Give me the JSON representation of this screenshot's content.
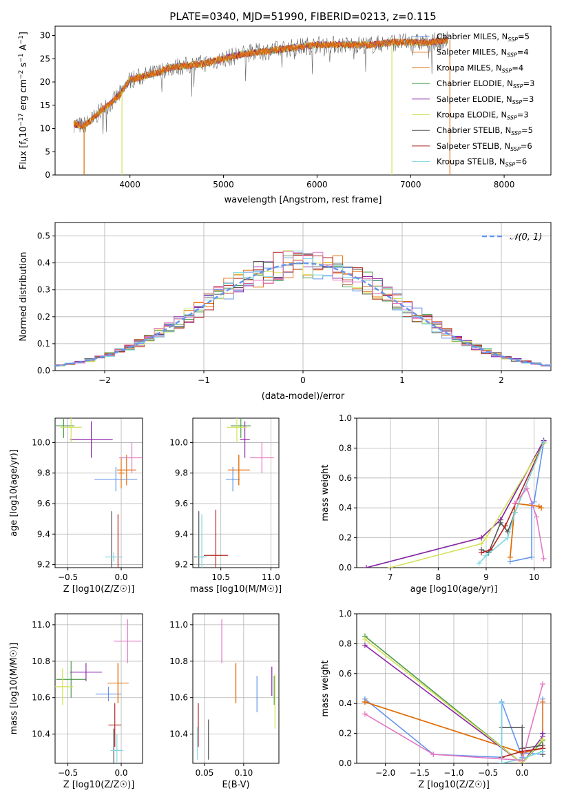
{
  "figure_title": "PLATE=0340, MJD=51990, FIBERID=0213, z=0.115",
  "model_colors": [
    "#6495ED",
    "#E8751A",
    "#E06C00",
    "#4C9A4C",
    "#8E24AA",
    "#D4E157",
    "#555555",
    "#B22222",
    "#7FD6E0"
  ],
  "chart_data": [
    {
      "id": "spectrum",
      "type": "line",
      "title": "PLATE=0340, MJD=51990, FIBERID=0213, z=0.115",
      "xlabel": "wavelength [Angstrom, rest frame]",
      "ylabel": "Flux [f_λ 10^-17 erg cm^-2 s^-1 A^-1]",
      "xlim": [
        3200,
        8500
      ],
      "ylim": [
        0,
        32
      ],
      "xticks": [
        4000,
        5000,
        6000,
        7000,
        8000
      ],
      "yticks": [
        0,
        5,
        10,
        15,
        20,
        25,
        30
      ],
      "grid": false,
      "legend_position": "right",
      "spectrum_x": [
        3400,
        3500,
        3600,
        3700,
        3800,
        3900,
        4000,
        4100,
        4200,
        4300,
        4400,
        4600,
        4800,
        5000,
        5200,
        5400,
        5600,
        5800,
        6000,
        6200,
        6400,
        6600,
        6800,
        7000,
        7200,
        7400
      ],
      "spectrum_y": [
        11,
        10.5,
        12,
        14,
        15.5,
        17.5,
        20.5,
        21,
        21.5,
        22,
        23,
        23.5,
        24,
        25,
        26,
        26.5,
        27,
        27.5,
        28,
        28,
        28,
        28,
        28.5,
        28.5,
        28.5,
        29
      ],
      "series": [
        {
          "name": "Chabrier MILES, N_SSP=5",
          "label_main": "Chabrier MILES, N",
          "label_sub": "SSP",
          "label_tail": "=5"
        },
        {
          "name": "Salpeter MILES, N_SSP=4",
          "label_main": "Salpeter MILES, N",
          "label_sub": "SSP",
          "label_tail": "=4"
        },
        {
          "name": "Kroupa MILES, N_SSP=4",
          "label_main": "Kroupa MILES, N",
          "label_sub": "SSP",
          "label_tail": "=4"
        },
        {
          "name": "Chabrier ELODIE, N_SSP=3",
          "label_main": "Chabrier ELODIE, N",
          "label_sub": "SSP",
          "label_tail": "=3"
        },
        {
          "name": "Salpeter ELODIE, N_SSP=3",
          "label_main": "Salpeter ELODIE, N",
          "label_sub": "SSP",
          "label_tail": "=3"
        },
        {
          "name": "Kroupa ELODIE, N_SSP=3",
          "label_main": "Kroupa ELODIE, N",
          "label_sub": "SSP",
          "label_tail": "=3"
        },
        {
          "name": "Chabrier STELIB, N_SSP=5",
          "label_main": "Chabrier STELIB, N",
          "label_sub": "SSP",
          "label_tail": "=5"
        },
        {
          "name": "Salpeter STELIB, N_SSP=6",
          "label_main": "Salpeter STELIB, N",
          "label_sub": "SSP",
          "label_tail": "=6"
        },
        {
          "name": "Kroupa STELIB, N_SSP=6",
          "label_main": "Kroupa STELIB, N",
          "label_sub": "SSP",
          "label_tail": "=6"
        }
      ]
    },
    {
      "id": "residuals",
      "type": "line",
      "xlabel": "(data-model)/error",
      "ylabel": "Normed distribution",
      "xlim": [
        -2.5,
        2.5
      ],
      "ylim": [
        0,
        0.55
      ],
      "xticks": [
        -2,
        -1,
        0,
        1,
        2
      ],
      "yticks": [
        0.0,
        0.1,
        0.2,
        0.3,
        0.4,
        0.5
      ],
      "grid": true,
      "legend_position": "top-right",
      "legend_label": "𝒩(0, 1)",
      "bin_centers": [
        -2.45,
        -2.35,
        -2.25,
        -2.15,
        -2.05,
        -1.95,
        -1.85,
        -1.75,
        -1.65,
        -1.55,
        -1.45,
        -1.35,
        -1.25,
        -1.15,
        -1.05,
        -0.95,
        -0.85,
        -0.75,
        -0.65,
        -0.55,
        -0.45,
        -0.35,
        -0.25,
        -0.15,
        -0.05,
        0.05,
        0.15,
        0.25,
        0.35,
        0.45,
        0.55,
        0.65,
        0.75,
        0.85,
        0.95,
        1.05,
        1.15,
        1.25,
        1.35,
        1.45,
        1.55,
        1.65,
        1.75,
        1.85,
        1.95,
        2.05,
        2.15,
        2.25,
        2.35,
        2.45
      ]
    },
    {
      "id": "age-vs-Z",
      "type": "scatter",
      "xlabel": "Z [log10(Z/Z☉)]",
      "ylabel": "age [log10(age/yr)]",
      "xlim": [
        -0.62,
        0.2
      ],
      "ylim": [
        9.18,
        10.16
      ],
      "xticks": [
        -0.5,
        0.0
      ],
      "xtick_labels": [
        "−0.5",
        "0.0"
      ],
      "yticks": [
        9.2,
        9.4,
        9.6,
        9.8,
        10.0
      ],
      "yticklabels": [
        "9.2",
        "9.4",
        "9.6",
        "9.8",
        "10.0"
      ],
      "grid": true,
      "points": [
        {
          "x": -0.05,
          "y": 9.76,
          "xerr": 0.2,
          "yerr": 0.08
        },
        {
          "x": 0.05,
          "y": 9.82,
          "xerr": 0.09,
          "yerr": 0.1
        },
        {
          "x": 0.0,
          "y": 9.8,
          "xerr": 0.03,
          "yerr": 0.1
        },
        {
          "x": -0.54,
          "y": 10.11,
          "xerr": 0.1,
          "yerr": 0.08
        },
        {
          "x": -0.28,
          "y": 10.02,
          "xerr": 0.2,
          "yerr": 0.12
        },
        {
          "x": -0.47,
          "y": 10.1,
          "xerr": 0.1,
          "yerr": 0.1
        },
        {
          "x": -0.09,
          "y": 9.25,
          "xerr": 0.0,
          "yerr": 0.3
        },
        {
          "x": -0.03,
          "y": 9.25,
          "xerr": 0.0,
          "yerr": 0.28
        },
        {
          "x": -0.07,
          "y": 9.25,
          "xerr": 0.08,
          "yerr": 0.03
        }
      ],
      "extra_pink": {
        "x": 0.1,
        "y": 9.9,
        "xerr": 0.12,
        "yerr": 0.1
      }
    },
    {
      "id": "age-vs-mass",
      "type": "scatter",
      "xlabel": "mass [log10(M/M☉)]",
      "ylabel": "",
      "xlim": [
        10.22,
        11.08
      ],
      "ylim": [
        9.18,
        10.16
      ],
      "xticks": [
        10.5,
        11.0
      ],
      "xtick_labels": [
        "10.5",
        "11.0"
      ],
      "yticks": [
        9.2,
        9.4,
        9.6,
        9.8,
        10.0
      ],
      "yticklabels": [
        "9.2",
        "9.4",
        "9.6",
        "9.8",
        "10.0"
      ],
      "grid": true,
      "points": [
        {
          "x": 10.62,
          "y": 9.76,
          "xerr": 0.07,
          "yerr": 0.08
        },
        {
          "x": 10.68,
          "y": 9.82,
          "xerr": 0.11,
          "yerr": 0.1
        },
        {
          "x": 10.68,
          "y": 9.82,
          "xerr": 0.0,
          "yerr": 0.1
        },
        {
          "x": 10.7,
          "y": 10.11,
          "xerr": 0.1,
          "yerr": 0.08
        },
        {
          "x": 10.74,
          "y": 10.02,
          "xerr": 0.05,
          "yerr": 0.12
        },
        {
          "x": 10.66,
          "y": 10.1,
          "xerr": 0.1,
          "yerr": 0.1
        },
        {
          "x": 10.28,
          "y": 9.25,
          "xerr": 0.05,
          "yerr": 0.3
        },
        {
          "x": 10.45,
          "y": 9.26,
          "xerr": 0.12,
          "yerr": 0.3
        },
        {
          "x": 10.31,
          "y": 9.25,
          "xerr": 0.05,
          "yerr": 0.28
        }
      ],
      "extra_pink": {
        "x": 10.91,
        "y": 9.9,
        "xerr": 0.12,
        "yerr": 0.1
      }
    },
    {
      "id": "mass-weight-vs-age",
      "type": "line",
      "xlabel": "age [log10(age/yr)]",
      "ylabel": "mass weight",
      "xlim": [
        6.3,
        10.35
      ],
      "ylim": [
        0,
        1
      ],
      "xticks": [
        7,
        8,
        9,
        10
      ],
      "xtick_labels": [
        "7",
        "8",
        "9",
        "10"
      ],
      "yticks": [
        0.0,
        0.2,
        0.4,
        0.6,
        0.8,
        1.0
      ],
      "yticklabels": [
        "0.0",
        "0.2",
        "0.4",
        "0.6",
        "0.8",
        "1.0"
      ],
      "grid": true,
      "series": [
        {
          "x": [
            9.5,
            9.95,
            9.95,
            10.0,
            10.2
          ],
          "y": [
            0.04,
            0.07,
            0.43,
            0.44,
            0.84
          ]
        },
        {
          "x": [
            9.5,
            9.6,
            10.1,
            10.15
          ],
          "y": [
            0.07,
            0.43,
            0.41,
            0.4
          ]
        },
        {
          "x": [
            9.5,
            9.6,
            10.1,
            10.15
          ],
          "y": [
            0.07,
            0.43,
            0.41,
            0.4
          ]
        },
        {
          "x": [
            6.5,
            8.9,
            9.3,
            10.2
          ],
          "y": [
            0.0,
            0.2,
            0.32,
            0.85
          ]
        },
        {
          "x": [
            6.5,
            8.9,
            9.3,
            10.2
          ],
          "y": [
            0.0,
            0.2,
            0.32,
            0.85
          ]
        },
        {
          "x": [
            7.0,
            8.9,
            9.0,
            10.2
          ],
          "y": [
            0.0,
            0.16,
            0.2,
            0.83
          ]
        },
        {
          "x": [
            8.9,
            9.05,
            9.3,
            9.45,
            9.6,
            10.2
          ],
          "y": [
            0.12,
            0.1,
            0.3,
            0.24,
            0.37,
            0.84
          ]
        },
        {
          "x": [
            8.9,
            9.1,
            9.4,
            10.2
          ],
          "y": [
            0.1,
            0.12,
            0.28,
            0.84
          ]
        },
        {
          "x": [
            8.85,
            9.0,
            9.45,
            9.6,
            10.2
          ],
          "y": [
            0.03,
            0.08,
            0.2,
            0.37,
            0.84
          ]
        }
      ],
      "pink": {
        "x": [
          9.6,
          9.85,
          10.05,
          10.2
        ],
        "y": [
          0.43,
          0.53,
          0.34,
          0.06
        ]
      }
    },
    {
      "id": "mass-vs-Z",
      "type": "scatter",
      "xlabel": "Z [log10(Z/Z☉)]",
      "ylabel": "mass [log10(M/M☉)]",
      "xlim": [
        -0.62,
        0.2
      ],
      "ylim": [
        10.24,
        11.06
      ],
      "xticks": [
        -0.5,
        0.0
      ],
      "xtick_labels": [
        "−0.5",
        "0.0"
      ],
      "yticks": [
        10.4,
        10.6,
        10.8,
        11.0
      ],
      "yticklabels": [
        "10.4",
        "10.6",
        "10.8",
        "11.0"
      ],
      "grid": true,
      "points": [
        {
          "x": -0.12,
          "y": 10.62,
          "xerr": 0.12,
          "yerr": 0.04
        },
        {
          "x": -0.03,
          "y": 10.68,
          "xerr": 0.1,
          "yerr": 0.11
        },
        {
          "x": -0.03,
          "y": 10.68,
          "xerr": 0.0,
          "yerr": 0.11
        },
        {
          "x": -0.47,
          "y": 10.7,
          "xerr": 0.14,
          "yerr": 0.1
        },
        {
          "x": -0.33,
          "y": 10.74,
          "xerr": 0.15,
          "yerr": 0.05
        },
        {
          "x": -0.55,
          "y": 10.66,
          "xerr": 0.1,
          "yerr": 0.1
        },
        {
          "x": -0.07,
          "y": 10.33,
          "xerr": 0.0,
          "yerr": 0.1
        },
        {
          "x": -0.06,
          "y": 10.45,
          "xerr": 0.06,
          "yerr": 0.12
        },
        {
          "x": -0.04,
          "y": 10.31,
          "xerr": 0.06,
          "yerr": 0.09
        }
      ],
      "extra_pink": {
        "x": 0.06,
        "y": 10.91,
        "xerr": 0.13,
        "yerr": 0.12
      }
    },
    {
      "id": "mass-vs-ebv",
      "type": "scatter",
      "xlabel": "E(B-V)",
      "ylabel": "",
      "xlim": [
        0.035,
        0.145
      ],
      "ylim": [
        10.24,
        11.06
      ],
      "xticks": [
        0.05,
        0.1
      ],
      "xtick_labels": [
        "0.05",
        "0.10"
      ],
      "yticks": [
        10.4,
        10.6,
        10.8,
        11.0
      ],
      "yticklabels": [
        "10.4",
        "10.6",
        "10.8",
        "11.0"
      ],
      "grid": true,
      "points": [
        {
          "x": 0.117,
          "y": 10.62,
          "xerr": 0.0,
          "yerr": 0.1
        },
        {
          "x": 0.09,
          "y": 10.68,
          "xerr": 0.0,
          "yerr": 0.11
        },
        {
          "x": 0.09,
          "y": 10.68,
          "xerr": 0.0,
          "yerr": 0.11
        },
        {
          "x": 0.139,
          "y": 10.64,
          "xerr": 0.0,
          "yerr": 0.08
        },
        {
          "x": 0.136,
          "y": 10.69,
          "xerr": 0.0,
          "yerr": 0.08
        },
        {
          "x": 0.14,
          "y": 10.58,
          "xerr": 0.0,
          "yerr": 0.15
        },
        {
          "x": 0.055,
          "y": 10.37,
          "xerr": 0.0,
          "yerr": 0.11
        },
        {
          "x": 0.042,
          "y": 10.45,
          "xerr": 0.0,
          "yerr": 0.12
        },
        {
          "x": 0.041,
          "y": 10.35,
          "xerr": 0.0,
          "yerr": 0.09
        }
      ],
      "extra_pink": {
        "x": 0.072,
        "y": 10.91,
        "xerr": 0.0,
        "yerr": 0.12
      }
    },
    {
      "id": "mass-weight-vs-Z",
      "type": "line",
      "xlabel": "Z [log10(Z/Z☉)]",
      "ylabel": "mass weight",
      "xlim": [
        -2.42,
        0.42
      ],
      "ylim": [
        0,
        1
      ],
      "xticks": [
        -2.0,
        -1.5,
        -1.0,
        -0.5,
        0.0
      ],
      "xtick_labels": [
        "−2.0",
        "−1.5",
        "−1.0",
        "−0.5",
        "0.0"
      ],
      "yticks": [
        0.0,
        0.2,
        0.4,
        0.6,
        0.8,
        1.0
      ],
      "yticklabels": [
        "0.0",
        "0.2",
        "0.4",
        "0.6",
        "0.8",
        "1.0"
      ],
      "grid": true,
      "series": [
        {
          "x": [
            -2.3,
            -1.3,
            -0.3,
            -0.3,
            0.0,
            0.0,
            0.3,
            0.3
          ],
          "y": [
            0.43,
            0.06,
            0.04,
            0.41,
            0.04,
            0.07,
            0.06,
            0.43
          ]
        },
        {
          "x": [
            -2.3,
            0.0,
            0.3,
            0.3
          ],
          "y": [
            0.41,
            0.07,
            0.1,
            0.41
          ]
        },
        {
          "x": [
            -2.3,
            0.0,
            0.3
          ],
          "y": [
            0.41,
            0.07,
            0.1
          ]
        },
        {
          "x": [
            -2.3,
            0.0,
            0.3,
            0.3
          ],
          "y": [
            0.85,
            0.0,
            0.15,
            0.2
          ]
        },
        {
          "x": [
            -2.3,
            0.0,
            0.3,
            0.3
          ],
          "y": [
            0.79,
            0.0,
            0.18,
            0.2
          ]
        },
        {
          "x": [
            -2.3,
            0.0,
            0.3
          ],
          "y": [
            0.83,
            0.0,
            0.16
          ]
        },
        {
          "x": [
            -0.3,
            0.0,
            0.0,
            0.3,
            0.3
          ],
          "y": [
            0.24,
            0.24,
            0.1,
            0.12,
            0.06
          ]
        },
        {
          "x": [
            -0.3,
            0.0,
            0.3
          ],
          "y": [
            0.04,
            0.08,
            0.1
          ]
        },
        {
          "x": [
            -0.3,
            -0.3,
            0.0,
            0.3
          ],
          "y": [
            0.4,
            0.0,
            0.03,
            0.08
          ]
        }
      ],
      "pink": {
        "x": [
          -2.3,
          -1.3,
          0.0,
          0.3
        ],
        "y": [
          0.33,
          0.06,
          0.02,
          0.53
        ]
      }
    }
  ]
}
